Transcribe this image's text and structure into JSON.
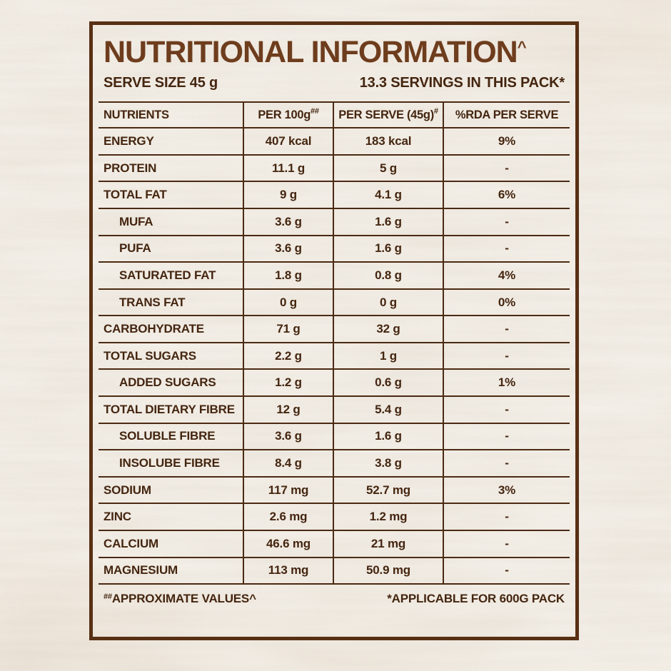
{
  "page": {
    "title": "NUTRITIONAL INFORMATION",
    "title_sup": "^",
    "serve_size": "SERVE SIZE 45 g",
    "servings": "13.3 SERVINGS IN THIS PACK*"
  },
  "table": {
    "headers": [
      {
        "text": "NUTRIENTS",
        "sup": ""
      },
      {
        "text": "PER 100g",
        "sup": "##"
      },
      {
        "text": "PER SERVE (45g)",
        "sup": "#"
      },
      {
        "text": "%RDA PER SERVE",
        "sup": ""
      }
    ],
    "rows": [
      {
        "nutrient": "ENERGY",
        "per_100g": "407 kcal",
        "per_serve": "183 kcal",
        "rda": "9%",
        "indent": false
      },
      {
        "nutrient": "PROTEIN",
        "per_100g": "11.1 g",
        "per_serve": "5 g",
        "rda": "-",
        "indent": false
      },
      {
        "nutrient": "TOTAL FAT",
        "per_100g": "9 g",
        "per_serve": "4.1 g",
        "rda": "6%",
        "indent": false
      },
      {
        "nutrient": "MUFA",
        "per_100g": "3.6 g",
        "per_serve": "1.6 g",
        "rda": "-",
        "indent": true
      },
      {
        "nutrient": "PUFA",
        "per_100g": "3.6 g",
        "per_serve": "1.6 g",
        "rda": "-",
        "indent": true
      },
      {
        "nutrient": "SATURATED FAT",
        "per_100g": "1.8 g",
        "per_serve": "0.8 g",
        "rda": "4%",
        "indent": true
      },
      {
        "nutrient": "TRANS FAT",
        "per_100g": "0 g",
        "per_serve": "0 g",
        "rda": "0%",
        "indent": true
      },
      {
        "nutrient": "CARBOHYDRATE",
        "per_100g": "71 g",
        "per_serve": "32 g",
        "rda": "-",
        "indent": false
      },
      {
        "nutrient": "TOTAL SUGARS",
        "per_100g": "2.2 g",
        "per_serve": "1 g",
        "rda": "-",
        "indent": false
      },
      {
        "nutrient": "ADDED SUGARS",
        "per_100g": "1.2 g",
        "per_serve": "0.6 g",
        "rda": "1%",
        "indent": true
      },
      {
        "nutrient": "TOTAL DIETARY FIBRE",
        "per_100g": "12 g",
        "per_serve": "5.4 g",
        "rda": "-",
        "indent": false
      },
      {
        "nutrient": "SOLUBLE FIBRE",
        "per_100g": "3.6 g",
        "per_serve": "1.6 g",
        "rda": "-",
        "indent": true
      },
      {
        "nutrient": "INSOLUBE FIBRE",
        "per_100g": "8.4 g",
        "per_serve": "3.8 g",
        "rda": "-",
        "indent": true
      },
      {
        "nutrient": "SODIUM",
        "per_100g": "117 mg",
        "per_serve": "52.7 mg",
        "rda": "3%",
        "indent": false
      },
      {
        "nutrient": "ZINC",
        "per_100g": "2.6 mg",
        "per_serve": "1.2 mg",
        "rda": "-",
        "indent": false
      },
      {
        "nutrient": "CALCIUM",
        "per_100g": "46.6 mg",
        "per_serve": "21 mg",
        "rda": "-",
        "indent": false
      },
      {
        "nutrient": "MAGNESIUM",
        "per_100g": "113 mg",
        "per_serve": "50.9 mg",
        "rda": "-",
        "indent": false
      }
    ]
  },
  "footnotes": {
    "left_sup": "##",
    "left_text": "APPROXIMATE VALUES^",
    "right_text": "*APPLICABLE FOR 600G PACK"
  },
  "colors": {
    "text": "#44250f",
    "title": "#6e3d1d",
    "border": "#583014",
    "line": "#4b2a13",
    "background": "#f1ece4"
  }
}
